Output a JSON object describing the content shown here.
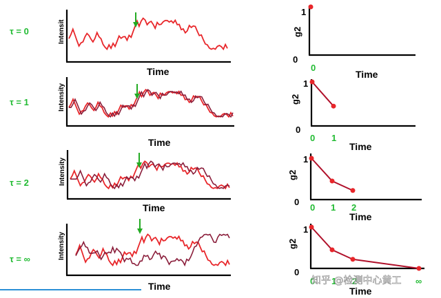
{
  "rows": [
    {
      "tau": "τ = 0",
      "ylabel": "Intensit",
      "xlabel": "Time",
      "g2_label": "g2",
      "g2_xlabel": "Time",
      "g2_ticks": [
        "0"
      ],
      "g2_y0": "0",
      "g2_y1": "1"
    },
    {
      "tau": "τ = 1",
      "ylabel": "Intensity",
      "xlabel": "Time",
      "g2_label": "g2",
      "g2_xlabel": "Time",
      "g2_ticks": [
        "0",
        "1"
      ],
      "g2_y0": "0",
      "g2_y1": "1"
    },
    {
      "tau": "τ = 2",
      "ylabel": "Intensity",
      "xlabel": "Time",
      "g2_label": "g2",
      "g2_xlabel": "Time",
      "g2_ticks": [
        "0",
        "1",
        "2"
      ],
      "g2_y0": "0",
      "g2_y1": "1"
    },
    {
      "tau": "τ = ∞",
      "ylabel": "Intensity",
      "xlabel": "Time",
      "g2_label": "g2",
      "g2_xlabel": "Time",
      "g2_ticks": [
        "0",
        "1",
        "2",
        "∞"
      ],
      "g2_y0": "0",
      "g2_y1": "1"
    }
  ],
  "g2_points": [
    [
      0,
      1.0
    ],
    [
      1,
      0.45
    ],
    [
      2,
      0.22
    ],
    [
      5,
      0.0
    ]
  ],
  "colors": {
    "trace": "#e8262a",
    "trace_shifted": "#8a1d3a",
    "arrow": "#22aa22",
    "tau_label": "#22bb33",
    "dot": "#e8262a"
  },
  "watermark": "知乎 @检测中心黄工"
}
